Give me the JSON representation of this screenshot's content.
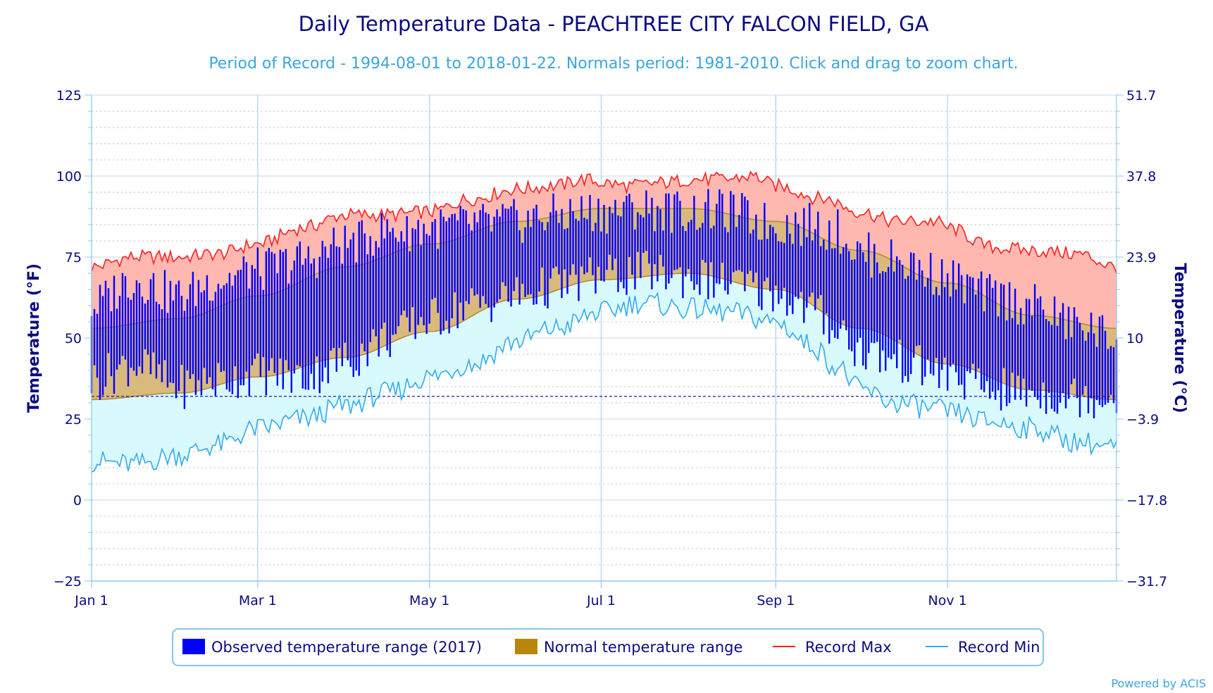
{
  "chart_data": {
    "type": "bar",
    "title": "Daily Temperature Data - PEACHTREE CITY FALCON FIELD, GA",
    "subtitle": "Period of Record - 1994-08-01 to 2018-01-22. Normals period: 1981-2010. Click and drag to zoom chart.",
    "ylabel": "Temperature (°F)",
    "ylabel_right": "Temperature (°C)",
    "ylim": [
      -25,
      125
    ],
    "y_ticks": [
      "125",
      "100",
      "75",
      "50",
      "25",
      "0",
      "−25"
    ],
    "y_ticks_right": [
      "51.7",
      "37.8",
      "23.9",
      "10",
      "−3.9",
      "−17.8",
      "−31.7"
    ],
    "x_ticks": [
      {
        "label": "Jan 1",
        "day": 0
      },
      {
        "label": "Mar 1",
        "day": 59
      },
      {
        "label": "May 1",
        "day": 120
      },
      {
        "label": "Jul 1",
        "day": 181
      },
      {
        "label": "Sep 1",
        "day": 243
      },
      {
        "label": "Nov 1",
        "day": 304
      }
    ],
    "days_in_year": 365,
    "freezing_line": 32,
    "grid": true,
    "legend_position": "bottom",
    "normals": {
      "max_anchor_days": [
        0,
        31,
        59,
        90,
        120,
        151,
        181,
        212,
        243,
        273,
        304,
        334,
        364
      ],
      "max_anchor_vals": [
        53,
        56,
        63,
        72,
        79,
        86,
        90,
        90,
        86,
        77,
        67,
        57,
        53
      ],
      "min_anchor_days": [
        0,
        31,
        59,
        90,
        120,
        151,
        181,
        212,
        243,
        273,
        304,
        334,
        364
      ],
      "min_anchor_vals": [
        31,
        33,
        38,
        44,
        52,
        62,
        68,
        70,
        65,
        53,
        42,
        34,
        31
      ]
    },
    "record_max": {
      "anchor_days": [
        0,
        15,
        31,
        45,
        59,
        75,
        90,
        105,
        120,
        135,
        151,
        165,
        175,
        181,
        190,
        205,
        212,
        225,
        235,
        243,
        260,
        273,
        285,
        300,
        304,
        320,
        334,
        350,
        364
      ],
      "anchor_vals": [
        72,
        75,
        75,
        76,
        79,
        84,
        88,
        88,
        89,
        93,
        96,
        97,
        99,
        98,
        97,
        98,
        99,
        99,
        100,
        97,
        93,
        89,
        86,
        86,
        84,
        78,
        77,
        76,
        72
      ]
    },
    "record_min": {
      "anchor_days": [
        0,
        15,
        31,
        45,
        59,
        75,
        90,
        105,
        120,
        135,
        151,
        165,
        181,
        195,
        212,
        225,
        243,
        255,
        265,
        273,
        285,
        300,
        304,
        320,
        334,
        350,
        364
      ],
      "anchor_vals": [
        12,
        11,
        14,
        17,
        22,
        25,
        29,
        33,
        38,
        42,
        49,
        53,
        58,
        61,
        59,
        58,
        55,
        48,
        41,
        34,
        30,
        28,
        27,
        24,
        22,
        18,
        16
      ]
    },
    "observed_2017": {
      "anchor_days": [
        0,
        15,
        31,
        45,
        59,
        75,
        90,
        105,
        120,
        135,
        151,
        165,
        181,
        195,
        212,
        225,
        243,
        255,
        265,
        273,
        285,
        300,
        304,
        320,
        334,
        350,
        364
      ],
      "high_anchor_vals": [
        60,
        68,
        63,
        68,
        71,
        74,
        79,
        83,
        84,
        85,
        86,
        88,
        89,
        90,
        89,
        89,
        85,
        85,
        83,
        76,
        74,
        70,
        68,
        63,
        60,
        54,
        50
      ],
      "low_anchor_vals": [
        37,
        42,
        35,
        37,
        39,
        38,
        43,
        50,
        56,
        60,
        63,
        66,
        69,
        70,
        69,
        67,
        64,
        59,
        53,
        46,
        43,
        40,
        38,
        34,
        33,
        32,
        32
      ]
    },
    "series": [
      {
        "name": "Observed temperature range (2017)",
        "color": "#0000ff"
      },
      {
        "name": "Normal temperature range",
        "color": "#b8860b"
      },
      {
        "name": "Record Max",
        "color": "#ff2020"
      },
      {
        "name": "Record Min",
        "color": "#33aaee"
      }
    ],
    "credit": "Powered by ACIS"
  }
}
